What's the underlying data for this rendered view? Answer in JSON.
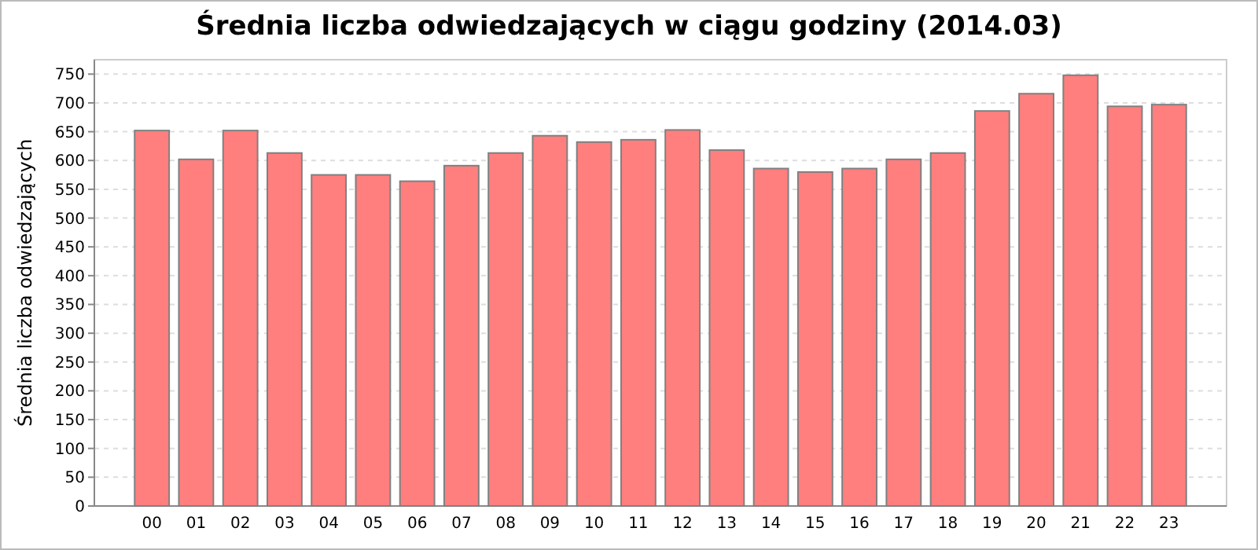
{
  "chart_data": {
    "type": "bar",
    "title": "Średnia liczba odwiedzających w ciągu godziny (2014.03)",
    "ylabel": "Średnia liczba odwiedzających",
    "categories": [
      "00",
      "01",
      "02",
      "03",
      "04",
      "05",
      "06",
      "07",
      "08",
      "09",
      "10",
      "11",
      "12",
      "13",
      "14",
      "15",
      "16",
      "17",
      "18",
      "19",
      "20",
      "21",
      "22",
      "23"
    ],
    "values": [
      652,
      602,
      652,
      613,
      575,
      575,
      564,
      591,
      613,
      643,
      632,
      636,
      653,
      618,
      586,
      580,
      586,
      602,
      613,
      686,
      716,
      748,
      694,
      697
    ],
    "color": "#ff7f7f",
    "ylim": [
      0,
      775
    ],
    "yticks": [
      0,
      50,
      100,
      150,
      200,
      250,
      300,
      350,
      400,
      450,
      500,
      550,
      600,
      650,
      700,
      750
    ],
    "grid": "y"
  }
}
